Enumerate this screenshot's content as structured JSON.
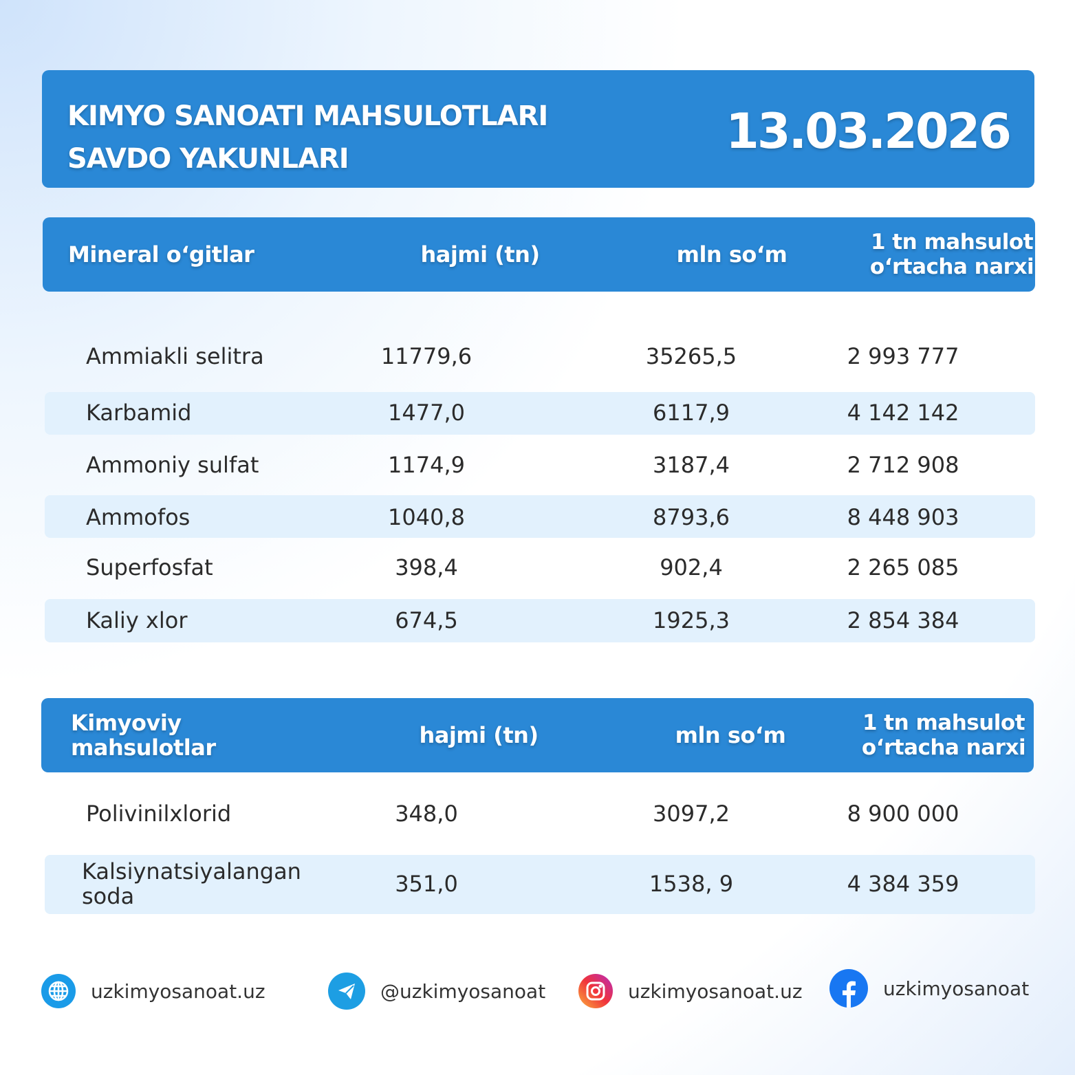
{
  "title": {
    "line1": "KIMYO SANOATI MAHSULOTLARI",
    "line2": "SAVDO YAKUNLARI",
    "date": "13.03.2026"
  },
  "colors": {
    "accent": "#2a88d6",
    "stripe": "#e2f1fd"
  },
  "table1": {
    "headers": [
      "Mineral o‘gitlar",
      "hajmi (tn)",
      "mln so‘m",
      "1 tn mahsulot o‘rtacha narxi"
    ],
    "rows": [
      [
        "Ammiakli selitra",
        "11779,6",
        "35265,5",
        "2 993 777"
      ],
      [
        "Karbamid",
        "1477,0",
        "6117,9",
        "4 142 142"
      ],
      [
        "Ammoniy sulfat",
        "1174,9",
        "3187,4",
        "2 712 908"
      ],
      [
        "Ammofos",
        "1040,8",
        "8793,6",
        "8 448 903"
      ],
      [
        "Superfosfat",
        "398,4",
        "902,4",
        "2 265 085"
      ],
      [
        "Kaliy xlor",
        "674,5",
        "1925,3",
        "2 854 384"
      ]
    ]
  },
  "table2": {
    "headers": [
      "Kimyoviy mahsulotlar",
      "hajmi (tn)",
      "mln so‘m",
      "1 tn mahsulot o‘rtacha narxi"
    ],
    "rows": [
      [
        "Polivinilxlorid",
        "348,0",
        "3097,2",
        "8 900 000"
      ],
      [
        "Kalsiynatsiyalangan soda",
        "351,0",
        "1538, 9",
        "4 384 359"
      ]
    ]
  },
  "footer": [
    {
      "icon": "globe-icon",
      "text": "uzkimyosanoat.uz"
    },
    {
      "icon": "telegram-icon",
      "text": "@uzkimyosanoat"
    },
    {
      "icon": "instagram-icon",
      "text": "uzkimyosanoat.uz"
    },
    {
      "icon": "facebook-icon",
      "text": "uzkimyosanoat"
    }
  ]
}
